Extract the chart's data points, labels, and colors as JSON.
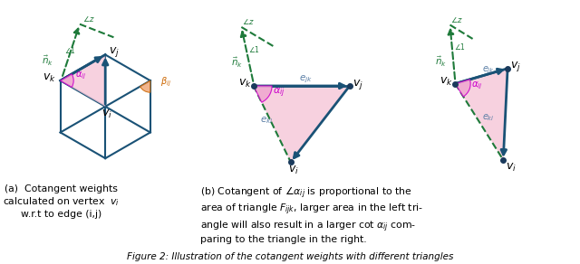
{
  "bg_color": "#ffffff",
  "blue_edge": "#1a5276",
  "green_dashed": "#1e7a3a",
  "pink_fill": "#f5c6d8",
  "orange_fill": "#f0a878",
  "magenta": "#cc00cc",
  "cyan_label": "#5b7fa6",
  "fig_caption_a": "(a)  Cotangent weights\ncalculated on vertex  $v_i$\nw.r.t to edge (i,j)",
  "fig_caption_b": "(b) Cotangent of $\\angle\\alpha_{ij}$ is proportional to the\narea of triangle $F_{ijk}$, larger area in the left tri-\nangle will also result in a larger cot $\\alpha_{ij}$ com-\nparing to the triangle in the right.",
  "figure_caption": "Figure 2: Illustration of the cotangent weights with different triangles"
}
